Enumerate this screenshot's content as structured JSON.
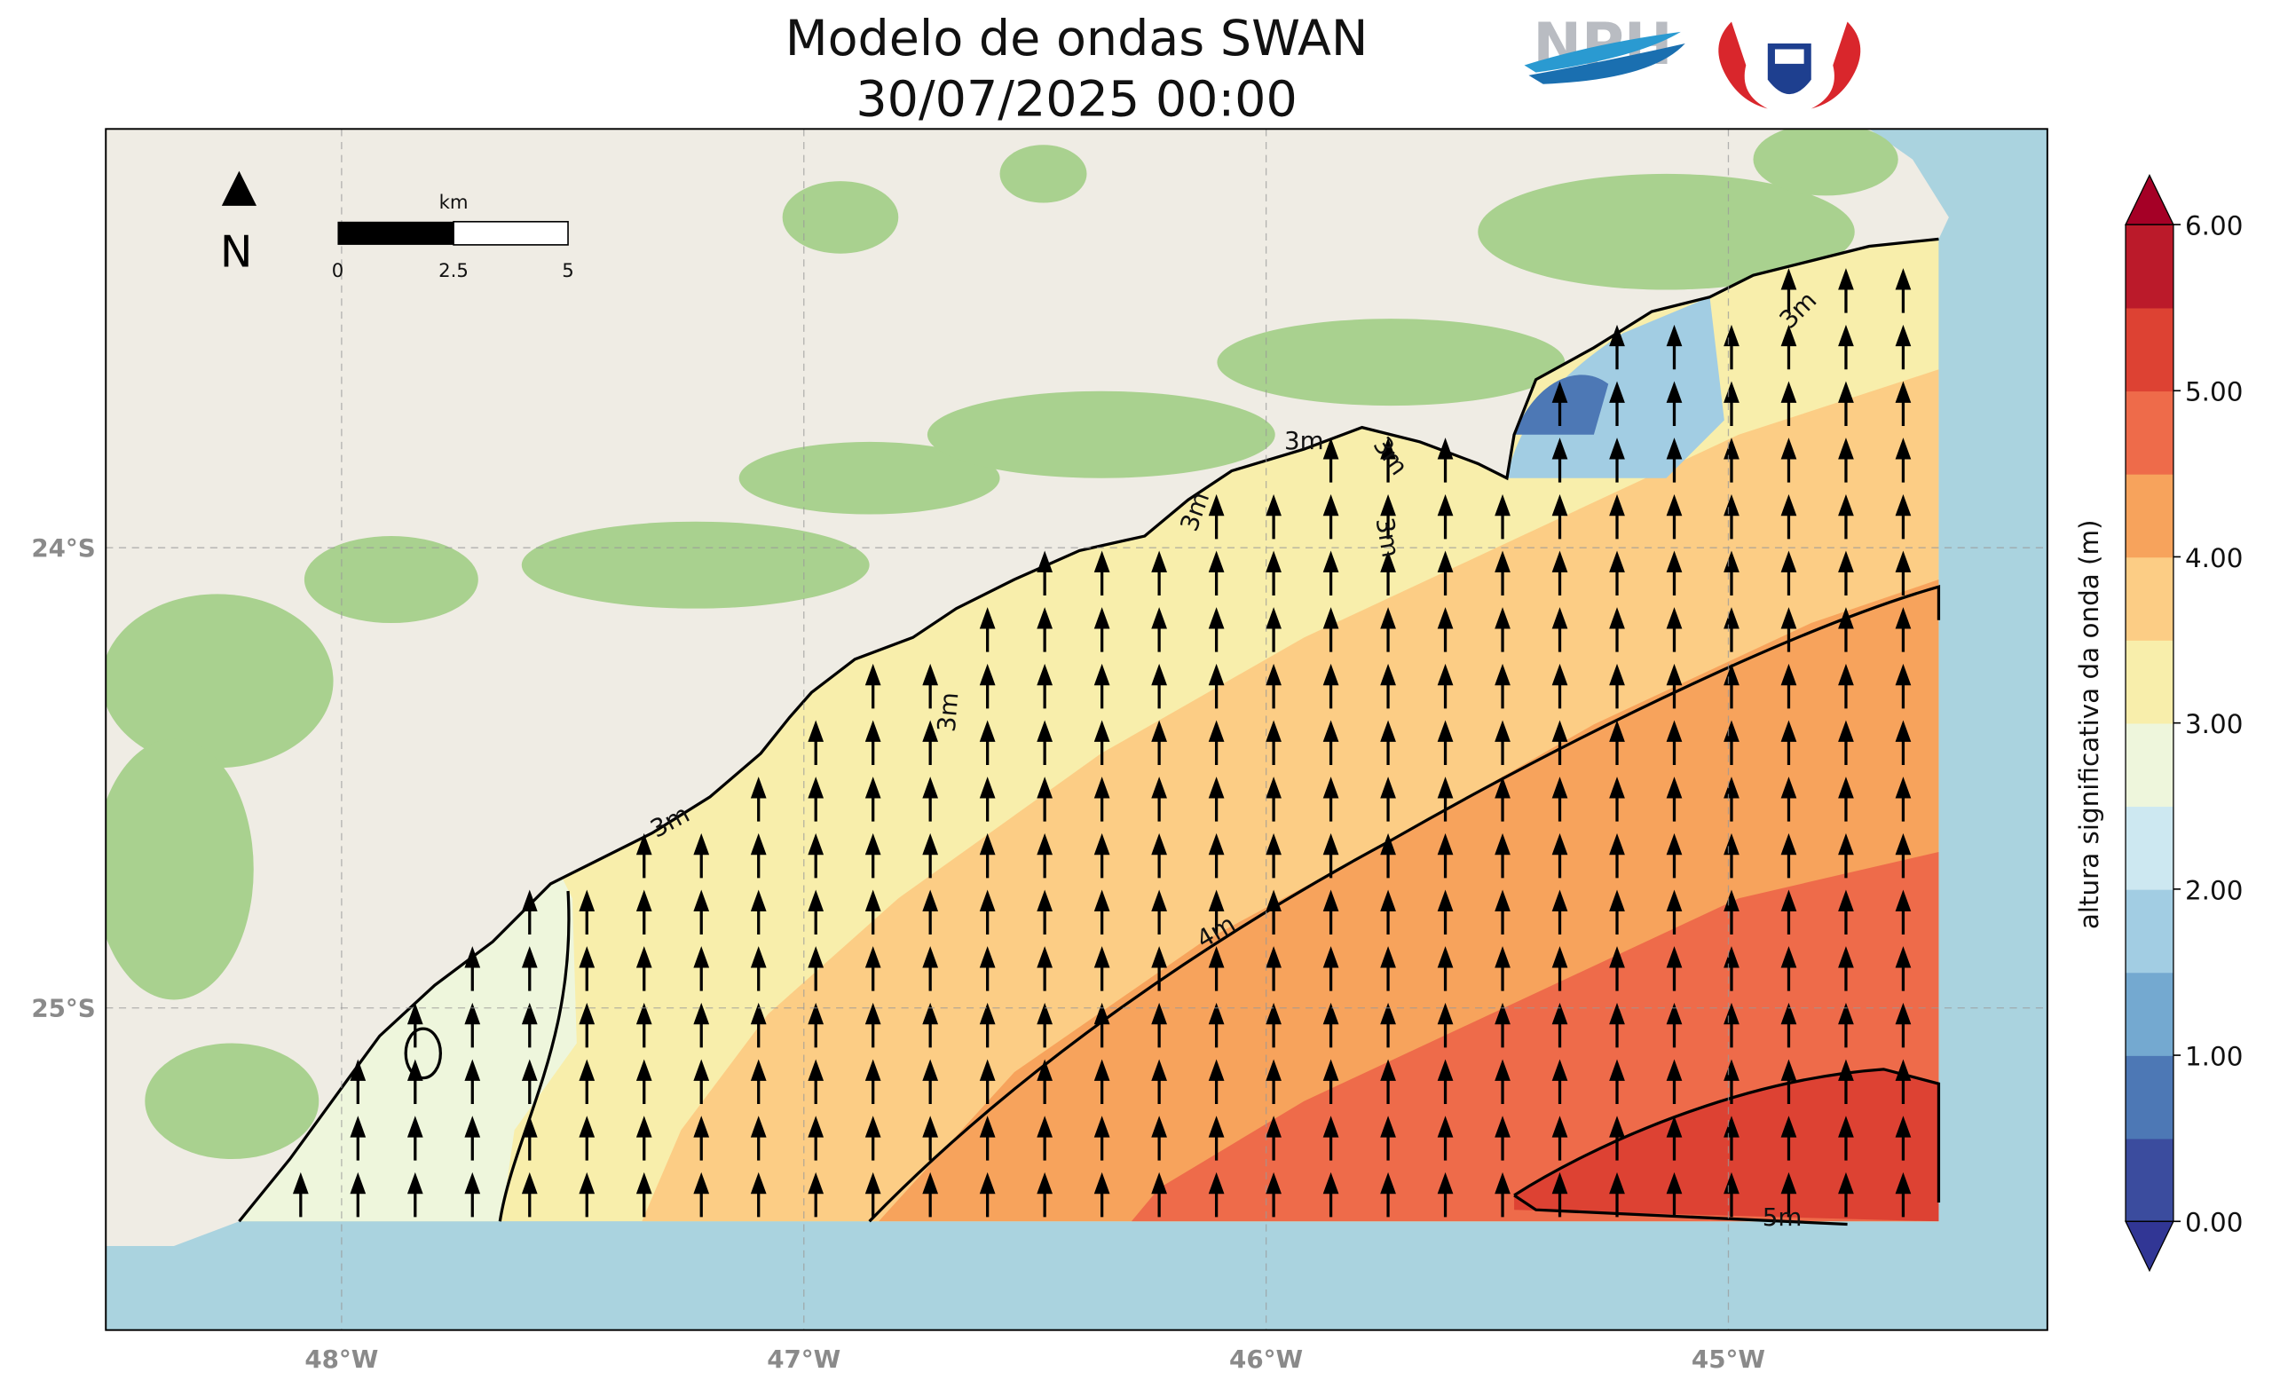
{
  "title": {
    "line1": "Modelo de ondas SWAN",
    "line2": "30/07/2025 00:00"
  },
  "logo": "NPH",
  "map": {
    "xlim": [
      -48.51,
      -44.31
    ],
    "ylim": [
      -25.7,
      -23.09
    ],
    "xticks": [
      {
        "value": -48,
        "label": "48°W"
      },
      {
        "value": -47,
        "label": "47°W"
      },
      {
        "value": -46,
        "label": "46°W"
      },
      {
        "value": -45,
        "label": "45°W"
      }
    ],
    "yticks": [
      {
        "value": -24,
        "label": "24°S"
      },
      {
        "value": -25,
        "label": "25°S"
      }
    ],
    "grid": true
  },
  "north": "N",
  "scale_bar": {
    "unit": "km",
    "labels": [
      "0",
      "2.5",
      "5"
    ]
  },
  "contour_labels": [
    "3m",
    "3m",
    "3m",
    "3m",
    "3m",
    "3m",
    "3m",
    "4m",
    "5m"
  ],
  "colorbar": {
    "label": "altura significativa da onda (m)",
    "levels": [
      0,
      0.5,
      1,
      1.5,
      2,
      2.5,
      3,
      3.5,
      4,
      4.5,
      5,
      5.5,
      6
    ],
    "colors": [
      "#3b4c9e",
      "#4d78b5",
      "#74a9d0",
      "#a2cde3",
      "#cde8f1",
      "#eef6dc",
      "#f8eeab",
      "#fccd85",
      "#f7a35c",
      "#ee6b4a",
      "#dd4233",
      "#bb1a2a"
    ],
    "extend_colors": [
      "#313695",
      "#a50026"
    ],
    "ticks": [
      {
        "value": 0,
        "label": "0.00"
      },
      {
        "value": 1,
        "label": "1.00"
      },
      {
        "value": 2,
        "label": "2.00"
      },
      {
        "value": 3,
        "label": "3.00"
      },
      {
        "value": 4,
        "label": "4.00"
      },
      {
        "value": 5,
        "label": "5.00"
      },
      {
        "value": 6,
        "label": "6.00"
      }
    ]
  }
}
